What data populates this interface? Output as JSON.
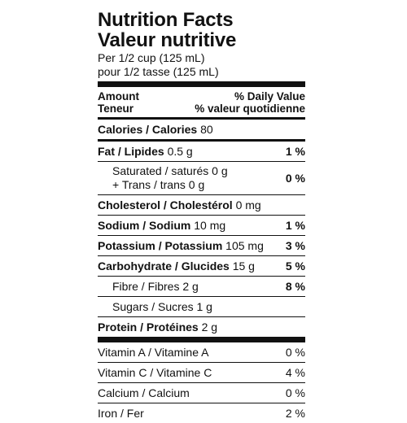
{
  "title_en": "Nutrition Facts",
  "title_fr": "Valeur nutritive",
  "serving_en": "Per 1/2 cup (125 mL)",
  "serving_fr": "pour 1/2 tasse (125 mL)",
  "header": {
    "left_en": "Amount",
    "left_fr": "Teneur",
    "right_en": "% Daily Value",
    "right_fr": "% valeur quotidienne"
  },
  "calories": {
    "label": "Calories / Calories",
    "amount": "80"
  },
  "fat": {
    "label": "Fat / Lipides",
    "amount": "0.5 g",
    "dv": "1 %"
  },
  "saturated": {
    "line1": "Saturated / saturés 0 g",
    "line2": "+ Trans / trans 0 g",
    "dv": "0 %"
  },
  "cholesterol": {
    "label": "Cholesterol / Cholestérol",
    "amount": "0 mg"
  },
  "sodium": {
    "label": "Sodium / Sodium",
    "amount": "10 mg",
    "dv": "1 %"
  },
  "potassium": {
    "label": "Potassium / Potassium",
    "amount": "105 mg",
    "dv": "3 %"
  },
  "carbohydrate": {
    "label": "Carbohydrate / Glucides",
    "amount": "15 g",
    "dv": "5 %"
  },
  "fibre": {
    "label": "Fibre / Fibres",
    "amount": "2 g",
    "dv": "8 %"
  },
  "sugars": {
    "label": "Sugars / Sucres",
    "amount": "1 g"
  },
  "protein": {
    "label": "Protein / Protéines",
    "amount": "2 g"
  },
  "vitamins": [
    {
      "label": "Vitamin A / Vitamine A",
      "dv": "0 %"
    },
    {
      "label": "Vitamin C / Vitamine C",
      "dv": "4 %"
    },
    {
      "label": "Calcium / Calcium",
      "dv": "0 %"
    },
    {
      "label": "Iron / Fer",
      "dv": "2 %"
    }
  ]
}
